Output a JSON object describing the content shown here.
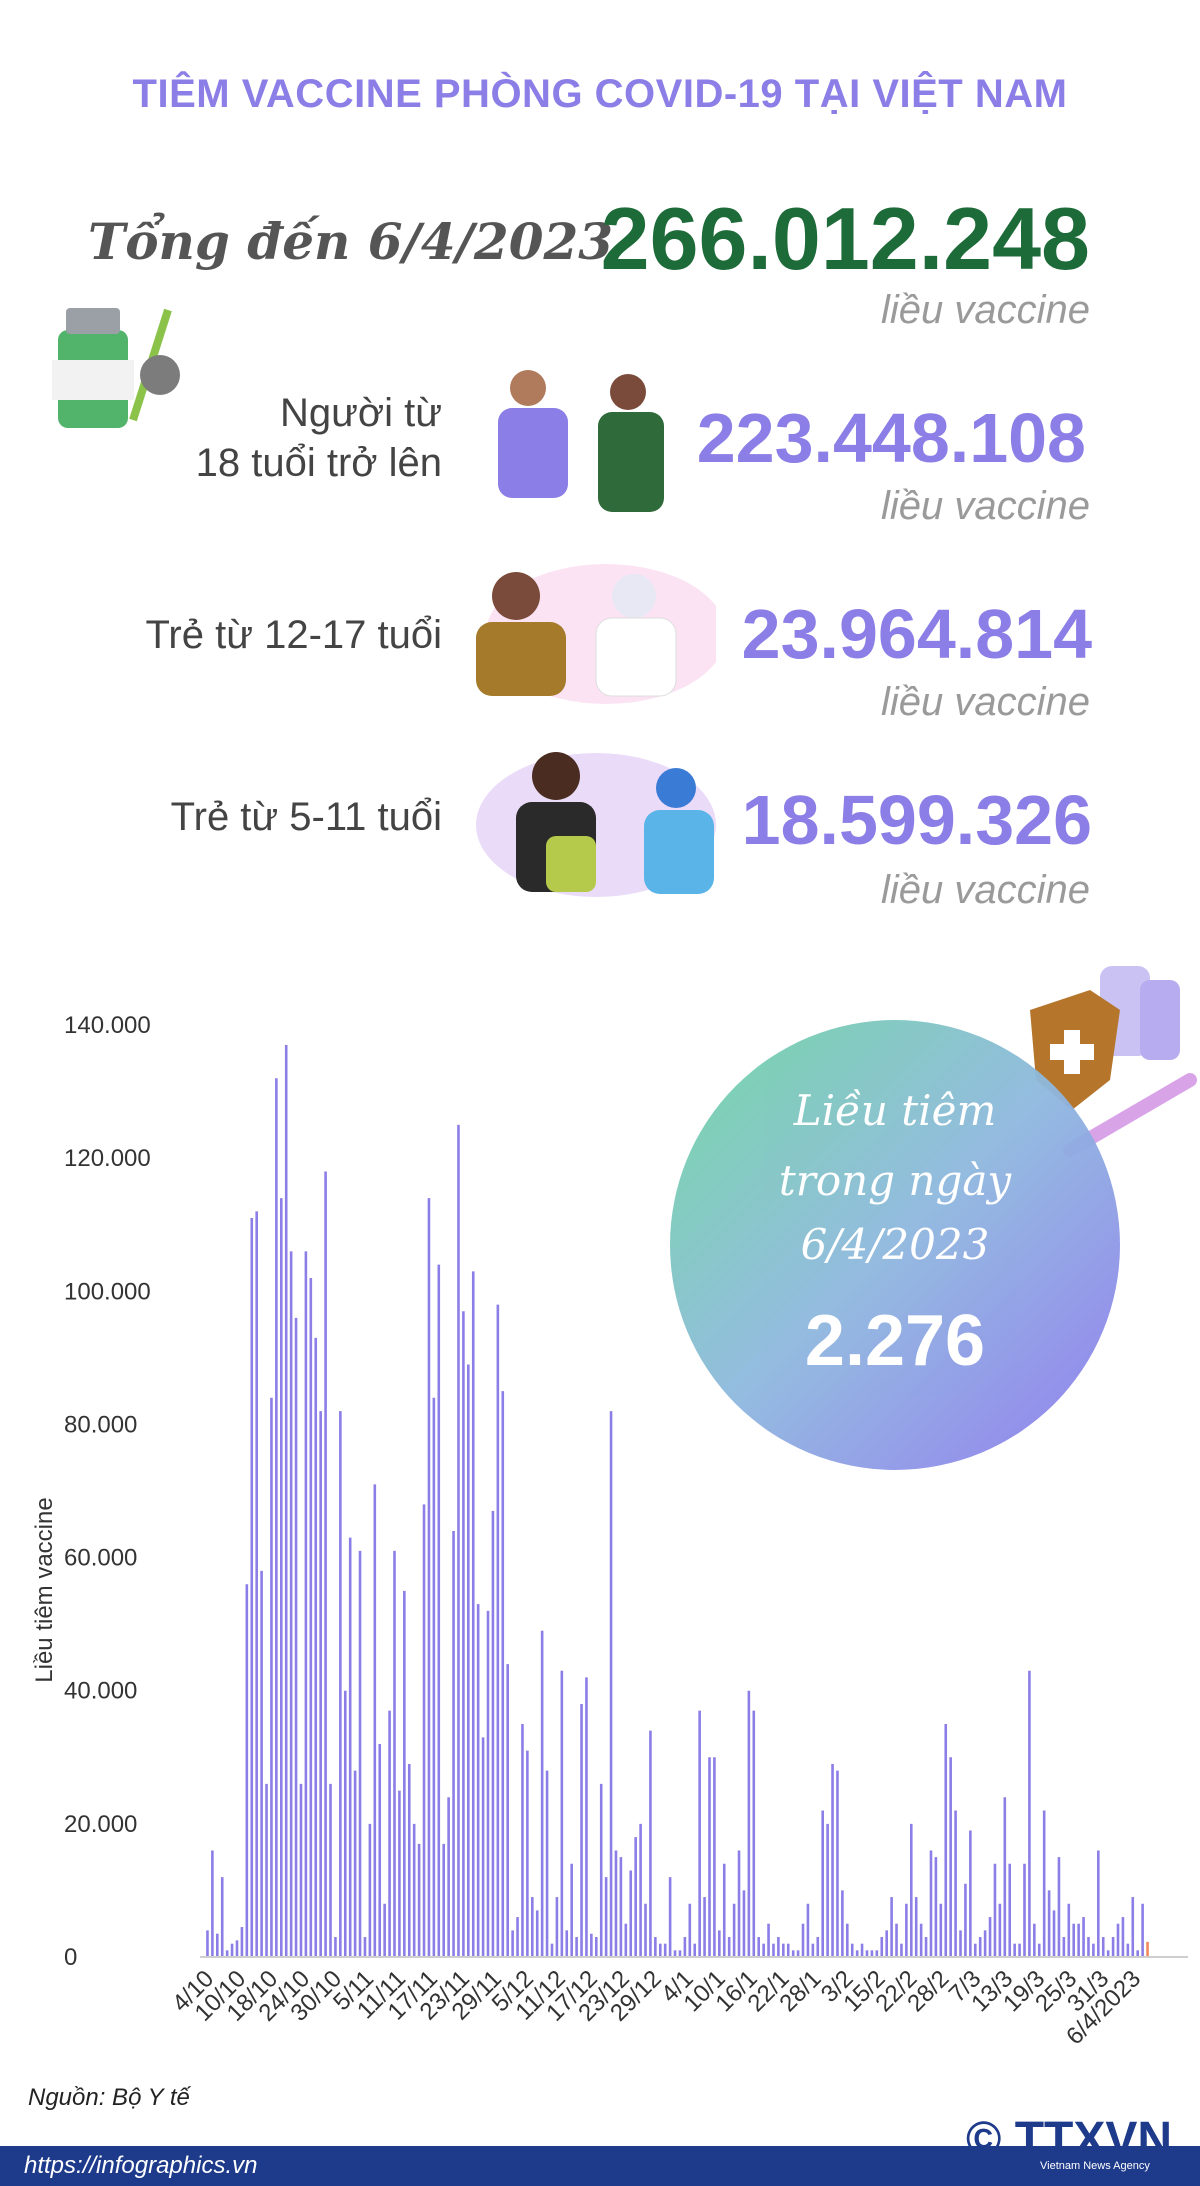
{
  "header": {
    "title": "TIÊM VACCINE PHÒNG COVID-19 TẠI VIỆT NAM"
  },
  "total": {
    "label": "Tổng đến 6/4/2023",
    "value": "266.012.248",
    "unit": "liều vaccine"
  },
  "groups": [
    {
      "label_line1": "Người từ",
      "label_line2": "18 tuổi trở lên",
      "value": "223.448.108",
      "unit": "liều vaccine"
    },
    {
      "label": "Trẻ từ 12-17 tuổi",
      "value": "23.964.814",
      "unit": "liều vaccine"
    },
    {
      "label": "Trẻ từ 5-11 tuổi",
      "value": "18.599.326",
      "unit": "liều vaccine"
    }
  ],
  "daily": {
    "line1": "Liều tiêm",
    "line2": "trong ngày",
    "line3": "6/4/2023",
    "value": "2.276"
  },
  "colors": {
    "title": "#8b7ee6",
    "total": "#1e6b3a",
    "bar": "#8b7ee6",
    "last_bar": "#f08a5d",
    "footer": "#1e3a8a"
  },
  "chart_data": {
    "type": "bar",
    "ylabel": "Liều tiêm vaccine",
    "ylim": [
      0,
      140000
    ],
    "yticks": [
      "0",
      "20.000",
      "40.000",
      "60.000",
      "80.000",
      "100.000",
      "120.000",
      "140.000"
    ],
    "xticks": [
      "4/10",
      "10/10",
      "18/10",
      "24/10",
      "30/10",
      "5/11",
      "11/11",
      "17/11",
      "23/11",
      "29/11",
      "5/12",
      "11/12",
      "17/12",
      "23/12",
      "29/12",
      "4/1",
      "10/1",
      "16/1",
      "22/1",
      "28/1",
      "3/2",
      "15/2",
      "22/2",
      "28/2",
      "7/3",
      "13/3",
      "19/3",
      "25/3",
      "31/3",
      "6/4/2023"
    ],
    "values": [
      4000,
      16000,
      3500,
      12000,
      1000,
      2000,
      2500,
      4500,
      56000,
      111000,
      112000,
      58000,
      26000,
      84000,
      132000,
      114000,
      137000,
      106000,
      96000,
      26000,
      106000,
      102000,
      93000,
      82000,
      118000,
      26000,
      3000,
      82000,
      40000,
      63000,
      28000,
      61000,
      3000,
      20000,
      71000,
      32000,
      8000,
      37000,
      61000,
      25000,
      55000,
      29000,
      20000,
      17000,
      68000,
      114000,
      84000,
      104000,
      17000,
      24000,
      64000,
      125000,
      97000,
      89000,
      103000,
      53000,
      33000,
      52000,
      67000,
      98000,
      85000,
      44000,
      4000,
      6000,
      35000,
      31000,
      9000,
      7000,
      49000,
      28000,
      2000,
      9000,
      43000,
      4000,
      14000,
      3000,
      38000,
      42000,
      3500,
      3000,
      26000,
      12000,
      82000,
      16000,
      15000,
      5000,
      13000,
      18000,
      20000,
      8000,
      34000,
      3000,
      2000,
      2000,
      12000,
      1000,
      1000,
      3000,
      8000,
      2000,
      37000,
      9000,
      30000,
      30000,
      4000,
      14000,
      3000,
      8000,
      16000,
      10000,
      40000,
      37000,
      3000,
      2000,
      5000,
      2000,
      3000,
      2000,
      2000,
      1000,
      1000,
      5000,
      8000,
      2000,
      3000,
      22000,
      20000,
      29000,
      28000,
      10000,
      5000,
      2000,
      1000,
      2000,
      1000,
      1000,
      1000,
      3000,
      4000,
      9000,
      5000,
      2000,
      8000,
      20000,
      9000,
      5000,
      3000,
      16000,
      15000,
      8000,
      35000,
      30000,
      22000,
      4000,
      11000,
      19000,
      2000,
      3000,
      4000,
      6000,
      14000,
      8000,
      24000,
      14000,
      2000,
      2000,
      14000,
      43000,
      5000,
      2000,
      22000,
      10000,
      7000,
      15000,
      3000,
      8000,
      5000,
      5000,
      6000,
      3000,
      2000,
      16000,
      3000,
      1000,
      3000,
      5000,
      6000,
      2000,
      9000,
      1000,
      8000,
      2276
    ]
  },
  "footer": {
    "source": "Nguồn: Bộ Y tế",
    "url": "https://infographics.vn",
    "logo": "TTXVN",
    "logo_sub": "Vietnam News Agency",
    "copyright": "©"
  }
}
